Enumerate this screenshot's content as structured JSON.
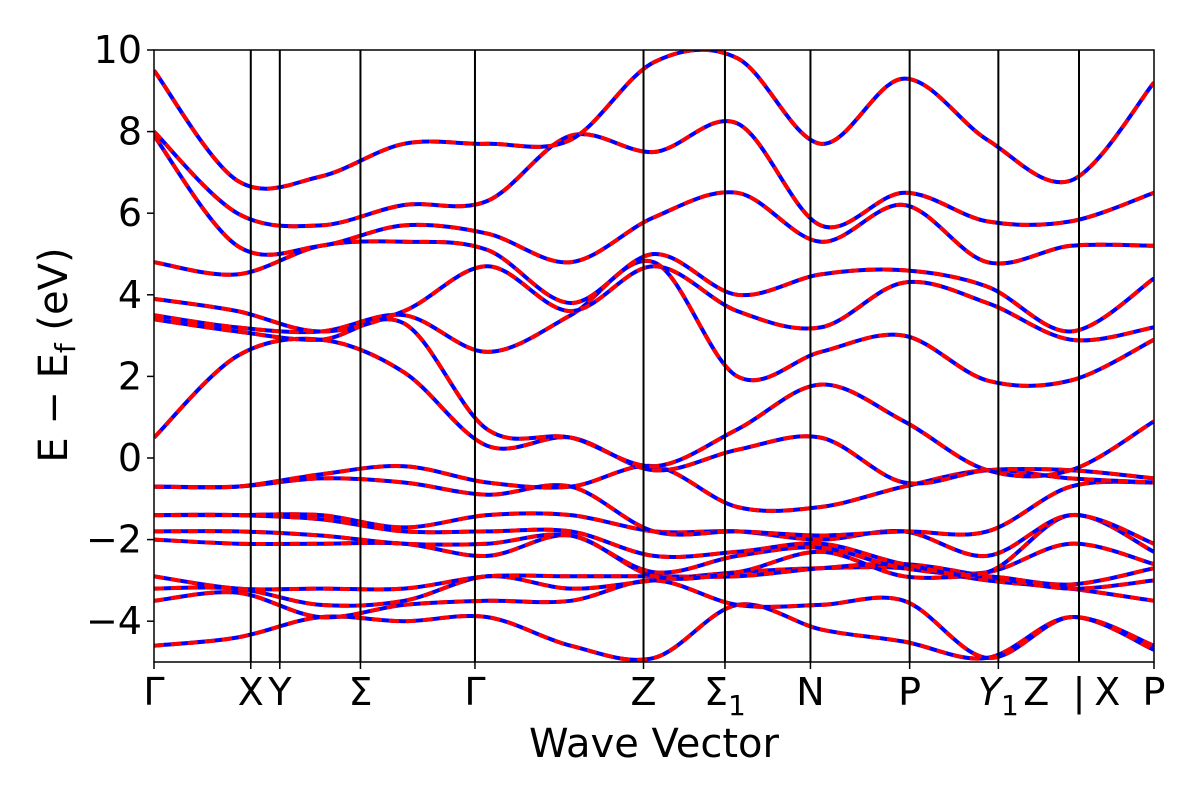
{
  "chart_data": {
    "type": "line",
    "title": "",
    "xlabel": "Wave Vector",
    "ylabel": "E − E_f (eV)",
    "ylabel_parts": {
      "main": "E − E",
      "sub": "f",
      "unit": " (eV)"
    },
    "ylim": [
      -5,
      10
    ],
    "yticks": [
      {
        "value": 10,
        "label": "10"
      },
      {
        "value": 8,
        "label": "8"
      },
      {
        "value": 6,
        "label": "6"
      },
      {
        "value": 4,
        "label": "4"
      },
      {
        "value": 2,
        "label": "2"
      },
      {
        "value": 0,
        "label": "0"
      },
      {
        "value": -2,
        "label": "−2"
      },
      {
        "value": -4,
        "label": "−4"
      }
    ],
    "kpoint_positions": [
      0,
      0.12,
      0.156,
      0.256,
      0.398,
      0.607,
      0.708,
      0.814,
      0.937,
      1.047,
      1.147,
      1.24
    ],
    "kpoint_labels": [
      {
        "pos": 0,
        "label": "Γ"
      },
      {
        "pos": 0.12,
        "label": "X"
      },
      {
        "pos": 0.156,
        "label": "Y"
      },
      {
        "pos": 0.256,
        "label": "Σ"
      },
      {
        "pos": 0.398,
        "label": "Γ"
      },
      {
        "pos": 0.607,
        "label": "Z"
      },
      {
        "pos": 0.708,
        "label": "Σ",
        "sub": "1"
      },
      {
        "pos": 0.814,
        "label": "N"
      },
      {
        "pos": 0.937,
        "label": "P"
      },
      {
        "pos": 1.047,
        "label": "Y",
        "sub": "1",
        "italic": true
      },
      {
        "pos": 1.094,
        "label": "Z"
      },
      {
        "pos": 1.147,
        "label": "|"
      },
      {
        "pos": 1.182,
        "label": "X"
      },
      {
        "pos": 1.24,
        "label": "P"
      }
    ],
    "xlim": [
      0,
      1.24
    ],
    "grid": false,
    "series_style": [
      {
        "color": "#0000ff",
        "dash": "none",
        "width": 4
      },
      {
        "color": "#ff0000",
        "dash": "10,7",
        "width": 4
      }
    ],
    "bands": [
      [
        -4.6,
        -4.4,
        -3.9,
        -4.0,
        -3.9,
        -4.6,
        -4.9,
        -3.6,
        -4.2,
        -4.5,
        -4.9,
        -3.9,
        -4.7
      ],
      [
        -3.5,
        -3.3,
        -3.9,
        -3.6,
        -3.5,
        -3.5,
        -3.0,
        -3.6,
        -3.6,
        -3.5,
        -4.9,
        -3.9,
        -4.6
      ],
      [
        -3.2,
        -3.2,
        -3.6,
        -3.5,
        -2.9,
        -3.2,
        -3.0,
        -2.8,
        -2.7,
        -2.7,
        -3.0,
        -3.2,
        -3.5
      ],
      [
        -2.9,
        -3.2,
        -3.2,
        -3.2,
        -2.9,
        -2.9,
        -2.9,
        -2.9,
        -2.7,
        -2.6,
        -2.9,
        -3.2,
        -3.0
      ],
      [
        -2.0,
        -2.1,
        -2.1,
        -2.1,
        -2.4,
        -1.9,
        -2.9,
        -2.8,
        -2.3,
        -2.9,
        -2.9,
        -3.1,
        -2.7
      ],
      [
        -1.8,
        -1.8,
        -1.9,
        -2.1,
        -2.1,
        -1.9,
        -2.8,
        -2.4,
        -2.2,
        -2.7,
        -2.8,
        -2.1,
        -2.6
      ],
      [
        -1.4,
        -1.4,
        -1.5,
        -1.8,
        -1.8,
        -1.8,
        -2.4,
        -2.3,
        -2.1,
        -2.6,
        -2.8,
        -1.4,
        -2.3
      ],
      [
        -1.4,
        -1.4,
        -1.4,
        -1.7,
        -1.4,
        -1.4,
        -1.8,
        -1.8,
        -2.0,
        -1.8,
        -2.4,
        -1.4,
        -2.1
      ],
      [
        -0.7,
        -0.7,
        -0.5,
        -0.6,
        -0.9,
        -0.7,
        -1.8,
        -1.8,
        -1.9,
        -1.8,
        -1.8,
        -0.7,
        -0.6
      ],
      [
        -0.7,
        -0.7,
        -0.4,
        -0.2,
        -0.6,
        -0.7,
        -0.2,
        -1.2,
        -1.2,
        -0.7,
        -0.3,
        -0.5,
        -0.6
      ],
      [
        0.5,
        2.5,
        2.9,
        2.1,
        0.3,
        0.5,
        -0.3,
        0.2,
        0.5,
        -0.6,
        -0.3,
        -0.3,
        -0.5
      ],
      [
        3.4,
        3.1,
        2.9,
        3.3,
        0.7,
        0.5,
        -0.2,
        0.7,
        1.8,
        0.9,
        -0.3,
        -0.3,
        0.9
      ],
      [
        3.5,
        3.2,
        3.1,
        3.5,
        2.6,
        3.5,
        4.8,
        2.0,
        2.6,
        3.0,
        1.9,
        1.9,
        2.9
      ],
      [
        3.9,
        3.6,
        3.1,
        3.6,
        4.7,
        3.6,
        4.7,
        3.6,
        3.2,
        4.3,
        3.8,
        2.9,
        3.2
      ],
      [
        4.8,
        4.5,
        5.2,
        5.3,
        5.1,
        3.8,
        5.0,
        4.0,
        4.5,
        4.6,
        4.2,
        3.1,
        4.4
      ],
      [
        7.9,
        5.2,
        5.2,
        5.7,
        5.5,
        4.8,
        5.9,
        6.5,
        5.3,
        6.2,
        4.8,
        5.2,
        5.2
      ],
      [
        8.0,
        6.0,
        5.7,
        6.2,
        6.3,
        7.9,
        7.5,
        8.2,
        5.7,
        6.5,
        5.8,
        5.8,
        6.5
      ],
      [
        9.5,
        6.8,
        6.9,
        7.7,
        7.7,
        7.8,
        9.7,
        9.8,
        7.7,
        9.3,
        7.8,
        6.8,
        9.2
      ]
    ]
  }
}
